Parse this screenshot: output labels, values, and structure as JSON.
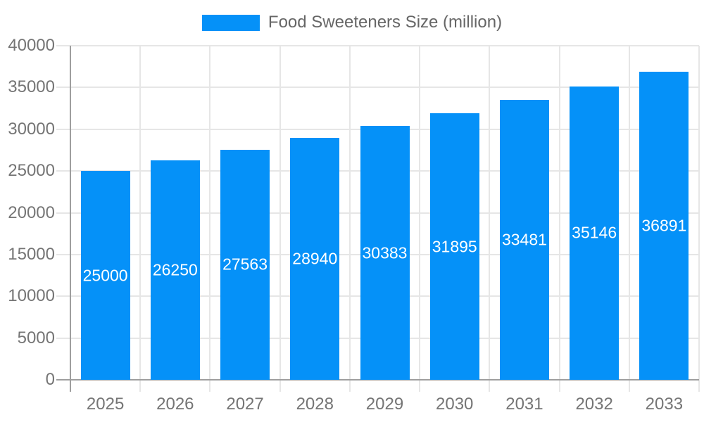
{
  "legend": {
    "label": "Food Sweeteners Size (million)",
    "swatch_icon": "legend-swatch",
    "swatch_color": "#0591f8"
  },
  "chart_data": {
    "type": "bar",
    "title": "Food Sweeteners Size (million)",
    "categories": [
      "2025",
      "2026",
      "2027",
      "2028",
      "2029",
      "2030",
      "2031",
      "2032",
      "2033"
    ],
    "series": [
      {
        "name": "Food Sweeteners Size (million)",
        "color": "#0591f8",
        "values": [
          25000,
          26250,
          27563,
          28940,
          30383,
          31895,
          33481,
          35146,
          36891
        ]
      }
    ],
    "data_labels": [
      "25000",
      "26250",
      "27563",
      "28940",
      "30383",
      "31895",
      "33481",
      "35146",
      "36891"
    ],
    "data_label_position": "center-inside-bar",
    "xlabel": "",
    "ylabel": "",
    "ylim": [
      0,
      40000
    ],
    "yticks": [
      0,
      5000,
      10000,
      15000,
      20000,
      25000,
      30000,
      35000,
      40000
    ],
    "grid": true,
    "legend_position": "top-center",
    "colors": {
      "bar": "#0591f8",
      "gridline": "#e6e6e6",
      "axis_line": "#9e9e9e",
      "tick_label": "#757575",
      "legend_text": "#666666",
      "data_label_text": "#ffffff",
      "background": "#ffffff"
    }
  }
}
